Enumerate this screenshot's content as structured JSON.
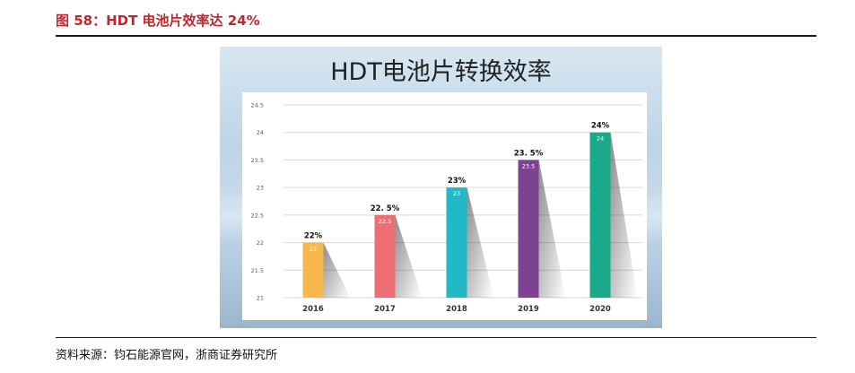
{
  "figure": {
    "caption": "图 58：HDT 电池片效率达 24%",
    "source": "资料来源：钧石能源官网，浙商证券研究所"
  },
  "colors": {
    "caption": "#c0262d"
  },
  "chart_data": {
    "type": "bar",
    "title": "HDT电池片转换效率",
    "categories": [
      "2016",
      "2017",
      "2018",
      "2019",
      "2020"
    ],
    "values": [
      22,
      22.5,
      23,
      23.5,
      24
    ],
    "outer_labels": [
      "22%",
      "22. 5%",
      "23%",
      "23. 5%",
      "24%"
    ],
    "inner_labels": [
      "22",
      "22.5",
      "23",
      "23.5",
      "24"
    ],
    "bar_colors": [
      "#f7b84b",
      "#ee6f73",
      "#20b9c4",
      "#7b4391",
      "#1aa98a"
    ],
    "ylim": [
      21,
      24.5
    ],
    "yticks": [
      21,
      21.5,
      22,
      22.5,
      23,
      23.5,
      24,
      24.5
    ],
    "ytick_labels": [
      "21",
      "21.5",
      "22",
      "22.5",
      "23",
      "23.5",
      "24",
      "24.5"
    ],
    "grid": true,
    "xlabel": "",
    "ylabel": ""
  }
}
